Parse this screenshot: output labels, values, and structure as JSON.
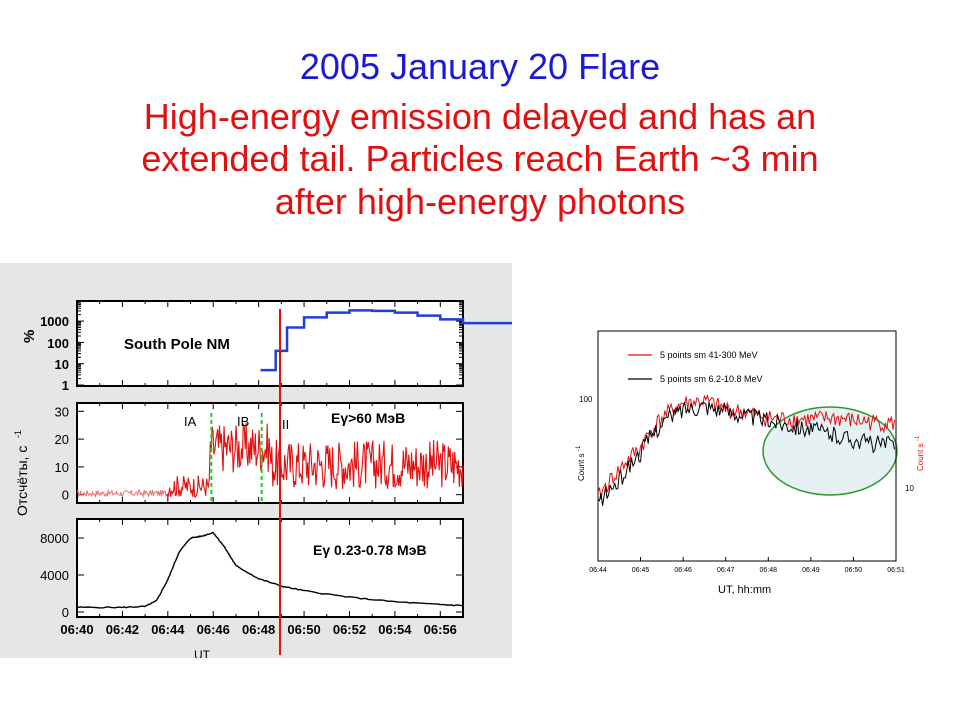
{
  "title": {
    "line1": "2005 January 20 Flare",
    "line2": "High-energy emission delayed and has an",
    "line3": "extended tail. Particles reach Earth ~3 min",
    "line4": "after high-energy photons"
  },
  "colors": {
    "title_blue": "#1a1ad6",
    "title_red": "#e01010",
    "panel_bg": "#e6e6e6",
    "neutron_blue": "#1f3fd6",
    "gamma_red": "#e01010",
    "ia_line_green": "#22cc22",
    "ellipse_green": "#2e9a2e",
    "ellipse_fill": "#e6f1f3"
  },
  "chart_data": [
    {
      "type": "line",
      "ylabel": "%",
      "annotation": "South Pole NM",
      "y_scale": "log",
      "yticks": [
        "1",
        "10",
        "100",
        "1000"
      ],
      "series": [
        {
          "style": "step",
          "x": [
            "06:48:05",
            "06:48:45",
            "06:49:15",
            "06:50:00",
            "06:51:00",
            "06:52:00",
            "06:53:00",
            "06:54:00",
            "06:55:00",
            "06:56:00",
            "06:57:00"
          ],
          "values": [
            5,
            40,
            500,
            1500,
            2500,
            3200,
            3000,
            2500,
            1800,
            1200,
            800
          ]
        }
      ]
    },
    {
      "type": "line",
      "ylabel": "Отсчёты, с",
      "ylabel_sup": "-1",
      "annotation": "Eγ>60 МэВ",
      "ylim": [
        -3,
        33
      ],
      "yticks": [
        "0",
        "10",
        "20",
        "30"
      ],
      "phase_labels": [
        "IA",
        "IB",
        "II"
      ],
      "phase_times": [
        "06:45:55",
        "06:48:08"
      ],
      "series": [
        {
          "x_range": [
            "06:40:00",
            "06:57:00"
          ],
          "levels": [
            {
              "from": "06:40:00",
              "to": "06:44:00",
              "value": 0.5
            },
            {
              "from": "06:44:00",
              "to": "06:45:50",
              "value": 3
            },
            {
              "from": "06:45:50",
              "to": "06:48:30",
              "value": 17
            },
            {
              "from": "06:48:30",
              "to": "06:57:00",
              "value": 11
            }
          ]
        }
      ]
    },
    {
      "type": "line",
      "annotation": "Eγ 0.23-0.78  МэВ",
      "ylim": [
        0,
        9000
      ],
      "yticks": [
        "0",
        "4000",
        "8000"
      ],
      "xticks": [
        "06:40",
        "06:42",
        "06:44",
        "06:46",
        "06:48",
        "06:50",
        "06:52",
        "06:54",
        "06:56"
      ],
      "xlabel": "UT",
      "series": [
        {
          "x": [
            "06:40:00",
            "06:42:00",
            "06:43:00",
            "06:43:30",
            "06:44:00",
            "06:44:30",
            "06:45:00",
            "06:45:30",
            "06:46:00",
            "06:46:30",
            "06:47:00",
            "06:48:00",
            "06:49:00",
            "06:50:00",
            "06:52:00",
            "06:54:00",
            "06:56:00",
            "06:57:00"
          ],
          "values": [
            500,
            500,
            600,
            1200,
            3500,
            6500,
            8000,
            8200,
            8600,
            7000,
            5000,
            3600,
            2800,
            2300,
            1600,
            1100,
            800,
            700
          ]
        }
      ]
    },
    {
      "type": "line",
      "xticks": [
        "06:44",
        "06:45",
        "06:46",
        "06:47",
        "06:48",
        "06:49",
        "06:50",
        "06:51"
      ],
      "xlabel": "UT, hh:mm",
      "ylabel_left": "Count s",
      "ylabel_right": "Count s",
      "ylabel_sup": "-1",
      "ytick_left": "100",
      "ytick_right": "10",
      "series": [
        {
          "name": "5 points sm 41-300 MeV",
          "color": "#e01010",
          "x": [
            "06:44:00",
            "06:44:30",
            "06:45:00",
            "06:45:30",
            "06:46:00",
            "06:46:30",
            "06:47:00",
            "06:47:30",
            "06:48:00",
            "06:48:30",
            "06:49:00",
            "06:49:30",
            "06:50:00",
            "06:50:30",
            "06:51:00"
          ],
          "values": [
            20,
            35,
            55,
            100,
            135,
            140,
            120,
            110,
            100,
            98,
            97,
            100,
            95,
            92,
            90
          ]
        },
        {
          "name": "5 points sm 6.2-10.8 MeV",
          "color": "#000000",
          "x": [
            "06:44:00",
            "06:44:30",
            "06:45:00",
            "06:45:30",
            "06:46:00",
            "06:46:30",
            "06:47:00",
            "06:47:30",
            "06:48:00",
            "06:48:30",
            "06:49:00",
            "06:49:30",
            "06:50:00",
            "06:50:30",
            "06:51:00"
          ],
          "values": [
            18,
            28,
            50,
            90,
            120,
            130,
            115,
            105,
            95,
            88,
            80,
            72,
            65,
            60,
            58
          ]
        }
      ]
    }
  ]
}
